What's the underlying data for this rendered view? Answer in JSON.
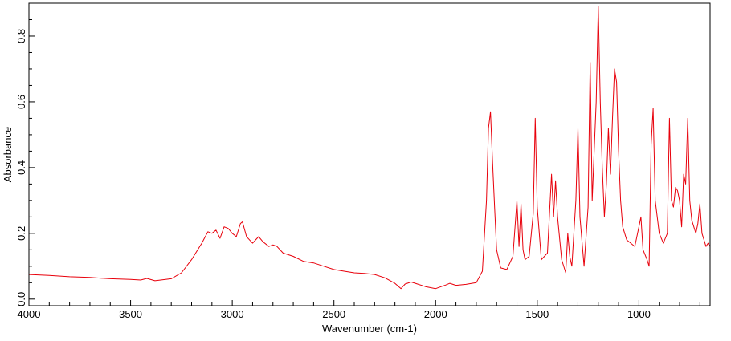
{
  "chart_data": {
    "type": "line",
    "title": "",
    "xlabel": "Wavenumber (cm-1)",
    "ylabel": "Absorbance",
    "xlim": [
      4000,
      650
    ],
    "ylim": [
      -0.02,
      0.9
    ],
    "x_reversed": true,
    "grid": false,
    "legend": "none",
    "x_ticks": [
      4000,
      3500,
      3000,
      2500,
      2000,
      1500,
      1000
    ],
    "x_tick_labels": [
      "4000",
      "3500",
      "3000",
      "2500",
      "2000",
      "1500",
      "1000"
    ],
    "y_ticks": [
      0.0,
      0.2,
      0.4,
      0.6,
      0.8
    ],
    "y_tick_labels": [
      "0.0",
      "0.2",
      "0.4",
      "0.6",
      "0.8"
    ],
    "series": [
      {
        "color": "#e8000b",
        "x": [
          4000,
          3900,
          3800,
          3700,
          3600,
          3500,
          3450,
          3420,
          3380,
          3300,
          3250,
          3200,
          3150,
          3120,
          3100,
          3080,
          3060,
          3040,
          3020,
          3000,
          2980,
          2960,
          2950,
          2930,
          2900,
          2870,
          2850,
          2820,
          2800,
          2780,
          2750,
          2700,
          2650,
          2600,
          2550,
          2500,
          2450,
          2400,
          2350,
          2300,
          2250,
          2200,
          2170,
          2150,
          2120,
          2100,
          2050,
          2000,
          1950,
          1930,
          1900,
          1850,
          1800,
          1770,
          1750,
          1740,
          1730,
          1720,
          1710,
          1700,
          1680,
          1650,
          1620,
          1600,
          1590,
          1580,
          1570,
          1560,
          1540,
          1520,
          1510,
          1500,
          1480,
          1450,
          1430,
          1420,
          1410,
          1400,
          1380,
          1360,
          1350,
          1340,
          1330,
          1310,
          1300,
          1290,
          1270,
          1250,
          1240,
          1230,
          1220,
          1210,
          1200,
          1190,
          1180,
          1170,
          1160,
          1150,
          1140,
          1130,
          1120,
          1110,
          1100,
          1090,
          1080,
          1060,
          1040,
          1020,
          1000,
          990,
          980,
          960,
          950,
          940,
          930,
          920,
          900,
          880,
          860,
          850,
          840,
          830,
          820,
          810,
          800,
          790,
          780,
          770,
          760,
          750,
          740,
          720,
          710,
          700,
          690,
          680,
          670,
          660,
          650
        ],
        "y": [
          0.075,
          0.072,
          0.068,
          0.066,
          0.062,
          0.06,
          0.058,
          0.063,
          0.056,
          0.062,
          0.08,
          0.12,
          0.17,
          0.205,
          0.2,
          0.21,
          0.185,
          0.22,
          0.215,
          0.2,
          0.19,
          0.23,
          0.235,
          0.19,
          0.17,
          0.19,
          0.175,
          0.16,
          0.165,
          0.16,
          0.14,
          0.13,
          0.115,
          0.11,
          0.1,
          0.09,
          0.085,
          0.08,
          0.078,
          0.075,
          0.065,
          0.048,
          0.032,
          0.046,
          0.052,
          0.048,
          0.038,
          0.032,
          0.043,
          0.048,
          0.042,
          0.045,
          0.05,
          0.085,
          0.3,
          0.52,
          0.57,
          0.42,
          0.28,
          0.15,
          0.095,
          0.09,
          0.13,
          0.3,
          0.16,
          0.29,
          0.15,
          0.12,
          0.13,
          0.26,
          0.55,
          0.28,
          0.12,
          0.14,
          0.38,
          0.25,
          0.36,
          0.25,
          0.12,
          0.08,
          0.2,
          0.13,
          0.1,
          0.3,
          0.52,
          0.25,
          0.1,
          0.28,
          0.72,
          0.3,
          0.45,
          0.6,
          0.89,
          0.6,
          0.4,
          0.25,
          0.35,
          0.52,
          0.38,
          0.55,
          0.7,
          0.66,
          0.45,
          0.3,
          0.22,
          0.18,
          0.17,
          0.16,
          0.22,
          0.25,
          0.15,
          0.12,
          0.1,
          0.47,
          0.58,
          0.3,
          0.2,
          0.17,
          0.2,
          0.55,
          0.3,
          0.28,
          0.34,
          0.33,
          0.3,
          0.22,
          0.38,
          0.35,
          0.55,
          0.3,
          0.24,
          0.2,
          0.23,
          0.29,
          0.2,
          0.18,
          0.16,
          0.17,
          0.16
        ]
      }
    ]
  }
}
